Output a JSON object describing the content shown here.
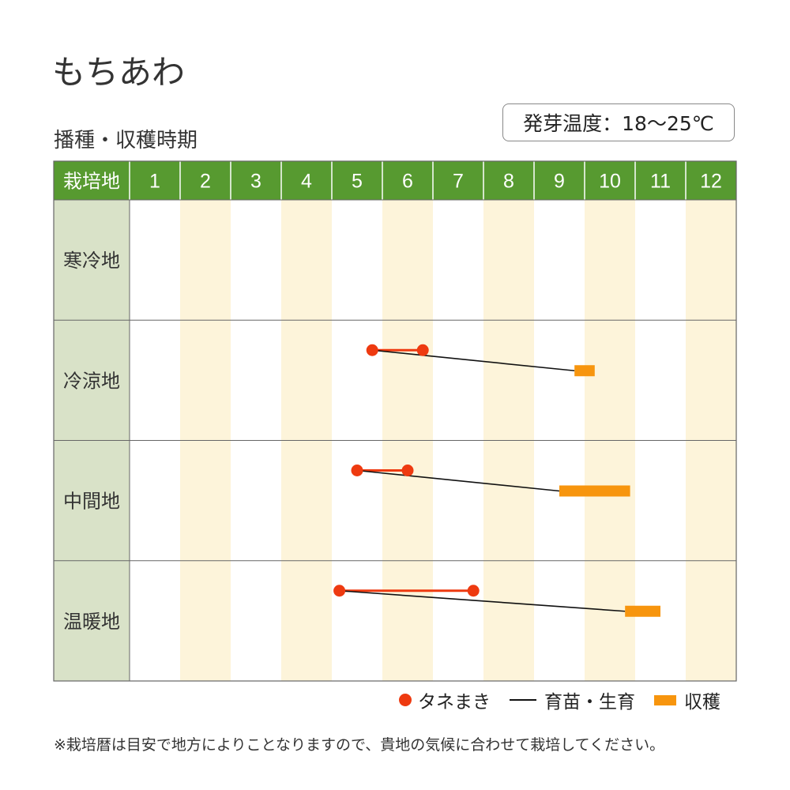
{
  "title": "もちあわ",
  "subtitle": "播種・収穫時期",
  "germination": "発芽温度：18〜25℃",
  "note": "※栽培暦は目安で地方によりことなりますので、貴地の気候に合わせて栽培してください。",
  "legend": {
    "sowing": "タネまき",
    "growing": "育苗・生育",
    "harvest": "収穫"
  },
  "colors": {
    "header_bg": "#579a30",
    "region_bg": "#d9e2c8",
    "stripe": "#fdf4da",
    "sowing": "#ee3a10",
    "harvest": "#f7950e",
    "growing": "#111111"
  },
  "chart_data": {
    "type": "table",
    "header_label": "栽培地",
    "months": [
      "1",
      "2",
      "3",
      "4",
      "5",
      "6",
      "7",
      "8",
      "9",
      "10",
      "11",
      "12"
    ],
    "rows": [
      {
        "region": "寒冷地",
        "sowing": null,
        "growing_end": null,
        "harvest": null
      },
      {
        "region": "冷涼地",
        "sowing": [
          5.8,
          6.8
        ],
        "growing_end": 9.8,
        "harvest": [
          9.8,
          10.2
        ]
      },
      {
        "region": "中間地",
        "sowing": [
          5.5,
          6.5
        ],
        "growing_end": 9.5,
        "harvest": [
          9.5,
          10.9
        ]
      },
      {
        "region": "温暖地",
        "sowing": [
          5.15,
          7.8
        ],
        "growing_end": 10.8,
        "harvest": [
          10.8,
          11.5
        ]
      }
    ]
  }
}
